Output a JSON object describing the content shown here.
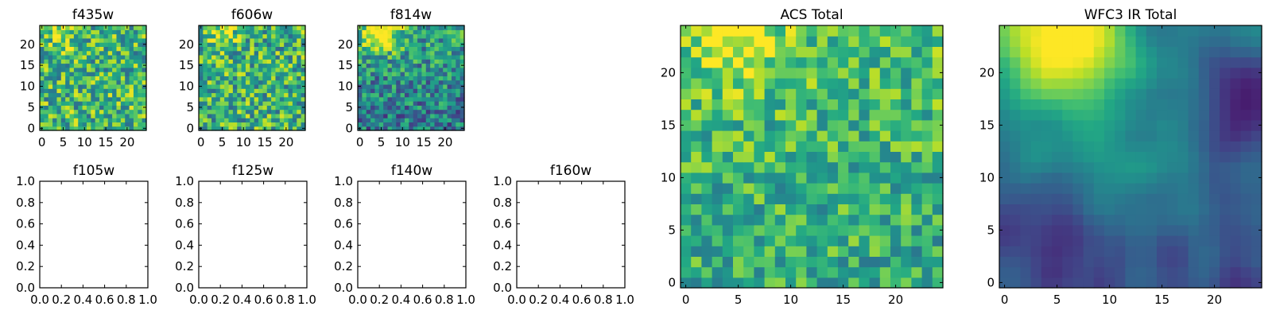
{
  "chart_data": [
    {
      "type": "heatmap",
      "title": "f435w",
      "size": 25,
      "seed": 11,
      "smooth": 0,
      "base": 0.66,
      "grad": 0.0,
      "noise": 0.62,
      "xticks": [
        "0",
        "5",
        "10",
        "15",
        "20"
      ],
      "yticks": [
        "0",
        "5",
        "10",
        "15",
        "20"
      ],
      "blobs": [
        {
          "cx": 5,
          "cy": 23,
          "amp": 0.25,
          "r": 2.5
        }
      ]
    },
    {
      "type": "heatmap",
      "title": "f606w",
      "size": 25,
      "seed": 23,
      "smooth": 0,
      "base": 0.64,
      "grad": 0.0,
      "noise": 0.62,
      "xticks": [
        "0",
        "5",
        "10",
        "15",
        "20"
      ],
      "yticks": [
        "0",
        "5",
        "10",
        "15",
        "20"
      ],
      "blobs": [
        {
          "cx": 5,
          "cy": 23,
          "amp": 0.25,
          "r": 2.5
        }
      ]
    },
    {
      "type": "heatmap",
      "title": "f814w",
      "size": 25,
      "seed": 37,
      "smooth": 0,
      "base": 0.48,
      "grad": 0.18,
      "noise": 0.55,
      "xticks": [
        "0",
        "5",
        "10",
        "15",
        "20"
      ],
      "yticks": [
        "0",
        "5",
        "10",
        "15",
        "20"
      ],
      "blobs": [
        {
          "cx": 5,
          "cy": 23,
          "amp": 0.5,
          "r": 3.5
        }
      ]
    },
    {
      "type": "empty",
      "title": "f105w",
      "xticks": [
        "0.0",
        "0.2",
        "0.4",
        "0.6",
        "0.8",
        "1.0"
      ],
      "yticks": [
        "0.0",
        "0.2",
        "0.4",
        "0.6",
        "0.8",
        "1.0"
      ]
    },
    {
      "type": "empty",
      "title": "f125w",
      "xticks": [
        "0.0",
        "0.2",
        "0.4",
        "0.6",
        "0.8",
        "1.0"
      ],
      "yticks": [
        "0.0",
        "0.2",
        "0.4",
        "0.6",
        "0.8",
        "1.0"
      ]
    },
    {
      "type": "empty",
      "title": "f140w",
      "xticks": [
        "0.0",
        "0.2",
        "0.4",
        "0.6",
        "0.8",
        "1.0"
      ],
      "yticks": [
        "0.0",
        "0.2",
        "0.4",
        "0.6",
        "0.8",
        "1.0"
      ]
    },
    {
      "type": "empty",
      "title": "f160w",
      "xticks": [
        "0.0",
        "0.2",
        "0.4",
        "0.6",
        "0.8",
        "1.0"
      ],
      "yticks": [
        "0.0",
        "0.2",
        "0.4",
        "0.6",
        "0.8",
        "1.0"
      ]
    },
    {
      "type": "heatmap",
      "title": "ACS Total",
      "size": 25,
      "seed": 51,
      "smooth": 0,
      "base": 0.66,
      "grad": 0.1,
      "noise": 0.45,
      "xticks": [
        "0",
        "5",
        "10",
        "15",
        "20"
      ],
      "yticks": [
        "0",
        "5",
        "10",
        "15",
        "20"
      ],
      "blobs": [
        {
          "cx": 5,
          "cy": 23,
          "amp": 0.3,
          "r": 3
        }
      ]
    },
    {
      "type": "heatmap",
      "title": "WFC3 IR Total",
      "size": 25,
      "seed": 67,
      "smooth": 2,
      "base": 0.3,
      "grad": 0.12,
      "noise": 0.22,
      "xticks": [
        "0",
        "5",
        "10",
        "15",
        "20"
      ],
      "yticks": [
        "0",
        "5",
        "10",
        "15",
        "20"
      ],
      "blobs": [
        {
          "cx": 5.5,
          "cy": 23.5,
          "amp": 0.75,
          "r": 4.5
        },
        {
          "cx": 11,
          "cy": 13,
          "amp": 0.15,
          "r": 7
        },
        {
          "cx": 23,
          "cy": 17,
          "amp": -0.3,
          "r": 3
        },
        {
          "cx": 6,
          "cy": 3,
          "amp": -0.15,
          "r": 3
        }
      ]
    }
  ]
}
